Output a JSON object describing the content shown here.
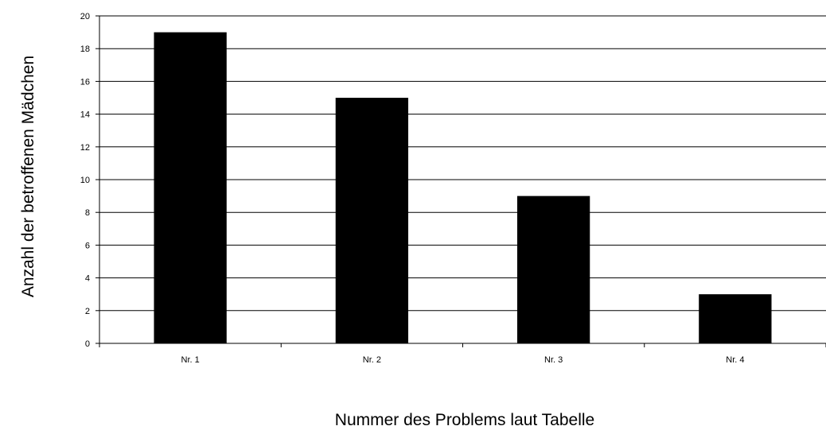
{
  "chart_data": {
    "type": "bar",
    "categories": [
      "Nr. 1",
      "Nr. 2",
      "Nr. 3",
      "Nr. 4"
    ],
    "values": [
      19,
      15,
      9,
      3
    ],
    "title": "",
    "xlabel": "Nummer des Problems laut Tabelle",
    "ylabel": "Anzahl der betroffenen Mädchen",
    "ylim": [
      0,
      20
    ],
    "yticks": [
      0,
      2,
      4,
      6,
      8,
      10,
      12,
      14,
      16,
      18,
      20
    ],
    "grid": true,
    "legend": "none",
    "colors": {
      "bar": "#000000",
      "grid": "#000000",
      "background": "#ffffff"
    }
  }
}
